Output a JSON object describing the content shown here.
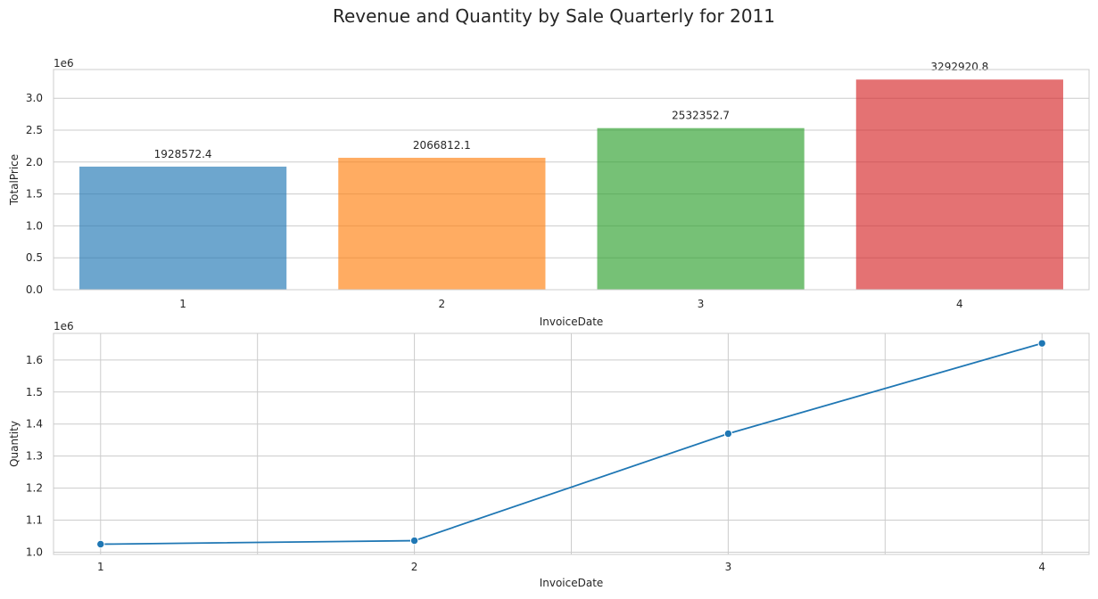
{
  "figure": {
    "title": "Revenue and Quantity by Sale Quarterly for 2011"
  },
  "chart_data": [
    {
      "type": "bar",
      "categories": [
        "1",
        "2",
        "3",
        "4"
      ],
      "values": [
        1928572.4,
        2066812.1,
        2532352.7,
        3292920.8
      ],
      "value_labels": [
        "1928572.4",
        "2066812.1",
        "2532352.7",
        "3292920.8"
      ],
      "xlabel": "InvoiceDate",
      "ylabel": "TotalPrice",
      "ylim": [
        0,
        3.45
      ],
      "yticks": [
        0.0,
        0.5,
        1.0,
        1.5,
        2.0,
        2.5,
        3.0
      ],
      "ytick_labels": [
        "0.0",
        "0.5",
        "1.0",
        "1.5",
        "2.0",
        "2.5",
        "3.0"
      ],
      "scale_label": "1e6",
      "colors": [
        "#1f77b4",
        "#ff7f0e",
        "#2ca02c",
        "#d62728"
      ],
      "bar_opacity": 0.65,
      "grid": true
    },
    {
      "type": "line",
      "x": [
        1,
        2,
        3,
        4
      ],
      "values": [
        1025000,
        1036000,
        1370000,
        1652000
      ],
      "xlabel": "InvoiceDate",
      "ylabel": "Quantity",
      "xlim": [
        0.85,
        4.15
      ],
      "xticks": [
        1,
        2,
        3,
        4
      ],
      "xtick_labels": [
        "1",
        "2",
        "3",
        "4"
      ],
      "ylim": [
        0.993,
        1.683
      ],
      "yticks": [
        1.0,
        1.1,
        1.2,
        1.3,
        1.4,
        1.5,
        1.6
      ],
      "ytick_labels": [
        "1.0",
        "1.1",
        "1.2",
        "1.3",
        "1.4",
        "1.5",
        "1.6"
      ],
      "scale_label": "1e6",
      "color": "#1f77b4",
      "marker": "circle",
      "grid": true
    }
  ]
}
